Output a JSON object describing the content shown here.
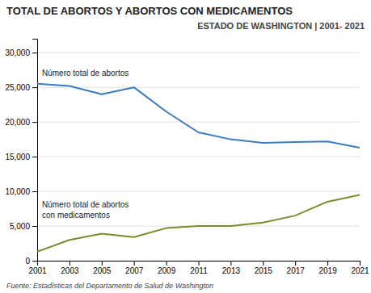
{
  "chart_data": {
    "type": "line",
    "title": "TOTAL DE ABORTOS Y ABORTOS CON MEDICAMENTOS",
    "subtitle": "ESTADO DE WASHINGTON | 2001- 2021",
    "x": [
      2001,
      2003,
      2005,
      2007,
      2009,
      2011,
      2013,
      2015,
      2017,
      2019,
      2021
    ],
    "series": [
      {
        "color": "#3a7cbf",
        "values": [
          25500,
          25200,
          24000,
          25000,
          21500,
          18500,
          17500,
          17000,
          17100,
          17200,
          16300
        ]
      },
      {
        "color": "#7a8c2e",
        "values": [
          1300,
          3000,
          3900,
          3400,
          4700,
          5000,
          5000,
          5500,
          6500,
          8500,
          9500
        ]
      }
    ],
    "xlim": [
      2001,
      2021
    ],
    "xticks": [
      2001,
      2003,
      2005,
      2007,
      2009,
      2011,
      2013,
      2015,
      2017,
      2019,
      2021
    ],
    "ylim": [
      0,
      32000
    ],
    "yticks": [
      0,
      {
        "value": 5000,
        "label": "5,000"
      },
      {
        "value": 10000,
        "label": "10,000"
      },
      {
        "value": 15000,
        "label": "15,000"
      },
      {
        "value": 20000,
        "label": "20,000"
      },
      {
        "value": 25000,
        "label": "25,000"
      },
      {
        "value": 30000,
        "label": "30,000"
      }
    ],
    "grid": true,
    "annotations": [
      "Número total de abortos",
      "Número total de abortos",
      "con medicamentos",
      "Fuente: Estadísticas del Departamento de Salud de Washington"
    ]
  }
}
